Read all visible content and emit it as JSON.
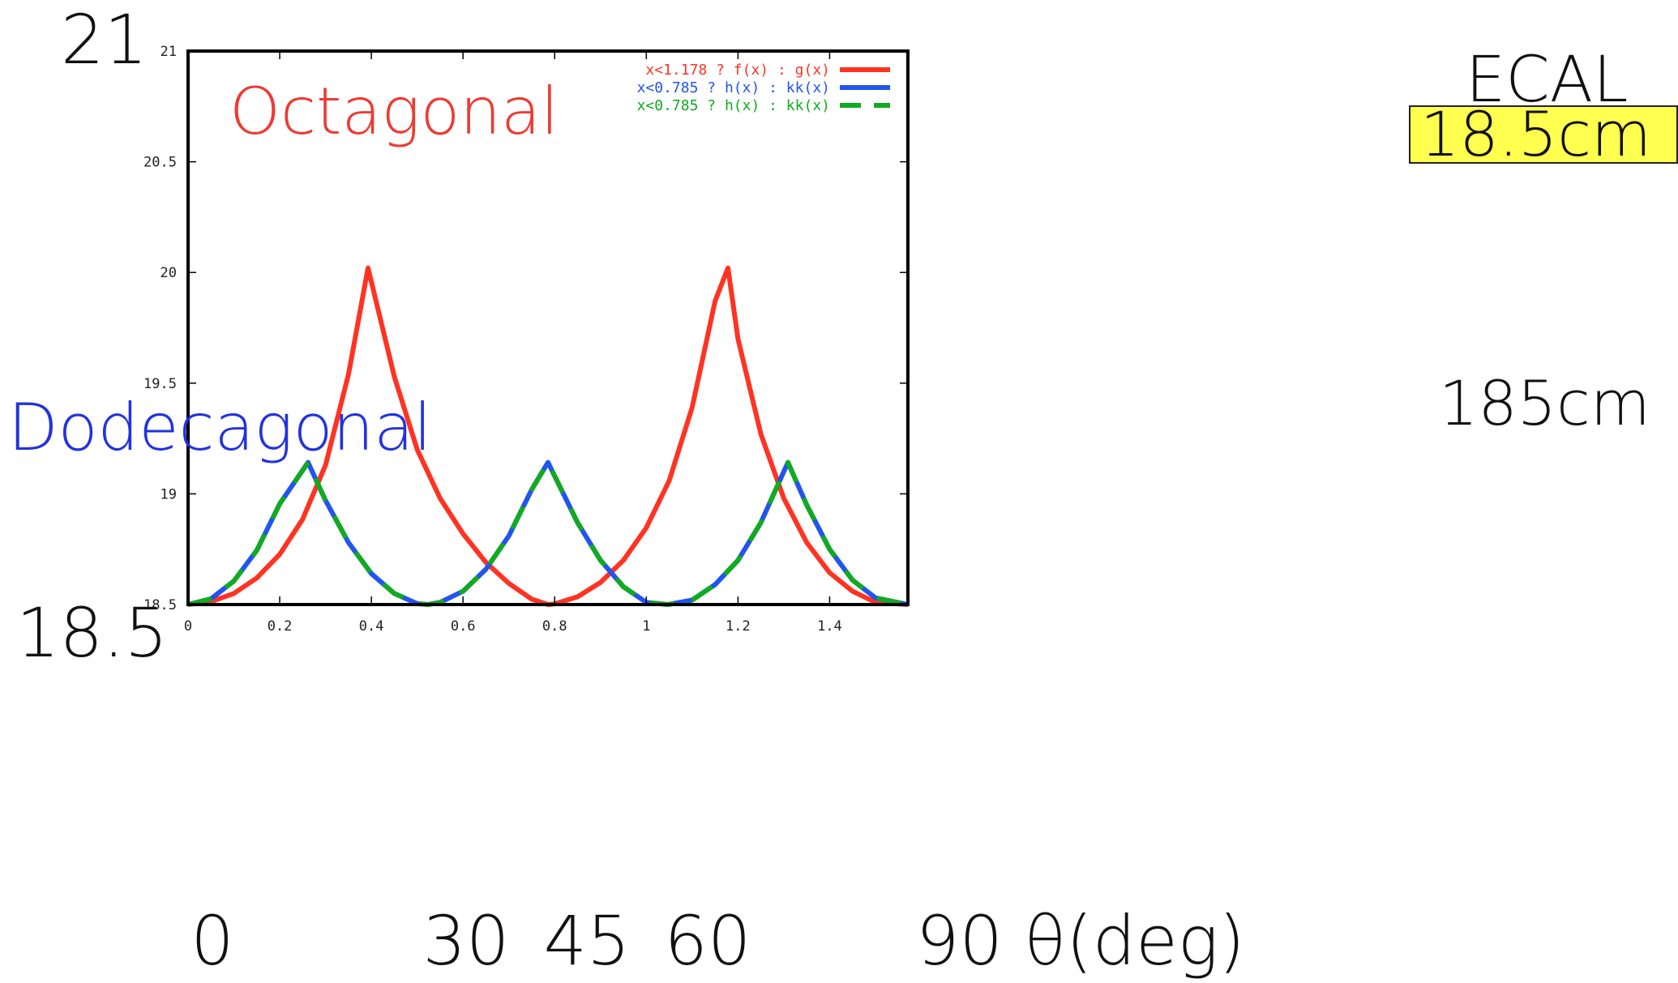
{
  "chart_data": {
    "type": "line",
    "x_range": [
      0,
      1.5708
    ],
    "y_range": [
      18.5,
      21
    ],
    "x_ticks": [
      "0",
      "0.2",
      "0.4",
      "0.6",
      "0.8",
      "1",
      "1.2",
      "1.4"
    ],
    "y_ticks": [
      "18.5",
      "19",
      "19.5",
      "20",
      "20.5",
      "21"
    ],
    "x_big_ticks": [
      "0",
      "30",
      "45",
      "60",
      "90 θ(deg)"
    ],
    "y_big_ticks": [
      "18.5",
      "21"
    ],
    "grid": false,
    "legend_position": "top-right",
    "series": [
      {
        "name": "x<1.178 ? f(x) : g(x)",
        "style": "solid",
        "color": "#ff3322",
        "x": [
          0,
          0.05,
          0.1,
          0.15,
          0.2,
          0.25,
          0.3,
          0.35,
          0.3927,
          0.45,
          0.5,
          0.55,
          0.6,
          0.65,
          0.7,
          0.75,
          0.7854,
          0.8,
          0.85,
          0.9,
          0.95,
          1.0,
          1.05,
          1.1,
          1.15,
          1.1781,
          1.2,
          1.25,
          1.3,
          1.35,
          1.4,
          1.45,
          1.5,
          1.5708
        ],
        "y": [
          18.5,
          18.513,
          18.55,
          18.62,
          18.727,
          18.885,
          19.13,
          19.54,
          20.02,
          19.53,
          19.2,
          18.98,
          18.82,
          18.69,
          18.596,
          18.524,
          18.5,
          18.503,
          18.535,
          18.6,
          18.7,
          18.847,
          19.06,
          19.39,
          19.87,
          20.02,
          19.7,
          19.27,
          18.98,
          18.78,
          18.644,
          18.56,
          18.51,
          18.5
        ]
      },
      {
        "name": "x<0.785 ? h(x) : kk(x)",
        "style": "solid",
        "color": "#2255ee",
        "x": [
          0,
          0.05,
          0.1,
          0.15,
          0.2,
          0.2618,
          0.3,
          0.35,
          0.4,
          0.45,
          0.5,
          0.5236,
          0.55,
          0.6,
          0.65,
          0.7,
          0.75,
          0.7854,
          0.85,
          0.9,
          0.95,
          1.0,
          1.0472,
          1.1,
          1.15,
          1.2,
          1.25,
          1.309,
          1.35,
          1.4,
          1.45,
          1.5,
          1.5708
        ],
        "y": [
          18.5,
          18.526,
          18.606,
          18.745,
          18.955,
          19.142,
          18.97,
          18.78,
          18.64,
          18.55,
          18.504,
          18.5,
          18.51,
          18.56,
          18.66,
          18.81,
          19.02,
          19.142,
          18.87,
          18.7,
          18.58,
          18.51,
          18.5,
          18.52,
          18.59,
          18.7,
          18.87,
          19.142,
          18.95,
          18.75,
          18.61,
          18.53,
          18.5
        ]
      },
      {
        "name": "x<0.785 ? h(x) : kk(x)",
        "style": "dashed",
        "color": "#11aa22",
        "x": [
          0,
          0.05,
          0.1,
          0.15,
          0.2,
          0.2618,
          0.3,
          0.35,
          0.4,
          0.45,
          0.5,
          0.5236,
          0.55,
          0.6,
          0.65,
          0.7,
          0.75,
          0.7854,
          0.85,
          0.9,
          0.95,
          1.0,
          1.0472,
          1.1,
          1.15,
          1.2,
          1.25,
          1.309,
          1.35,
          1.4,
          1.45,
          1.5,
          1.5708
        ],
        "y": [
          18.5,
          18.526,
          18.606,
          18.745,
          18.955,
          19.142,
          18.97,
          18.78,
          18.64,
          18.55,
          18.504,
          18.5,
          18.51,
          18.56,
          18.66,
          18.81,
          19.02,
          19.142,
          18.87,
          18.7,
          18.58,
          18.51,
          18.5,
          18.52,
          18.59,
          18.7,
          18.87,
          19.142,
          18.95,
          18.75,
          18.61,
          18.53,
          18.5
        ]
      }
    ],
    "annotations": [
      {
        "text": "Octagonal",
        "color": "#ee3a33"
      },
      {
        "text": "Dodecagonal",
        "color": "#2233dd"
      }
    ]
  },
  "side": {
    "title": "ECAL",
    "highlight": "18.5cm",
    "length": "185cm"
  }
}
